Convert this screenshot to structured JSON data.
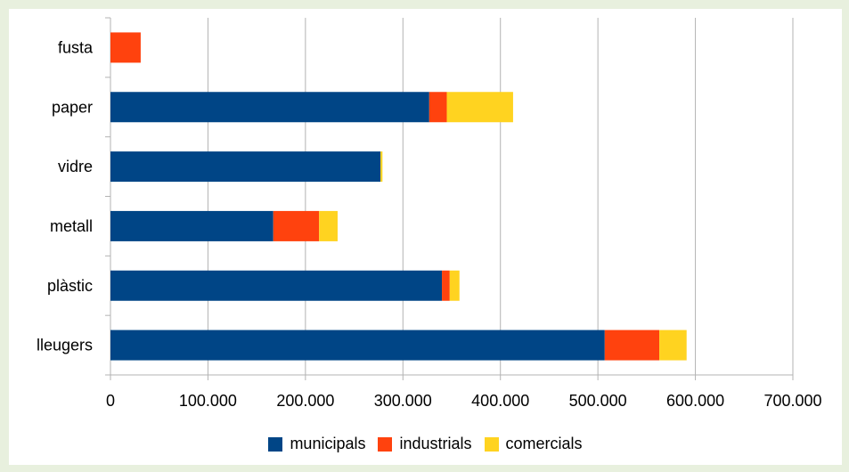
{
  "chart_data": {
    "type": "bar",
    "orientation": "horizontal",
    "stacked": true,
    "categories": [
      "fusta",
      "paper",
      "vidre",
      "metall",
      "plàstic",
      "lleugers"
    ],
    "series": [
      {
        "name": "municipals",
        "color": "#004586",
        "values": [
          0,
          327000,
          277000,
          167000,
          340000,
          507000
        ]
      },
      {
        "name": "industrials",
        "color": "#ff420e",
        "values": [
          31000,
          18000,
          0,
          47000,
          8000,
          56000
        ]
      },
      {
        "name": "comercials",
        "color": "#ffd320",
        "values": [
          0,
          68000,
          2000,
          19000,
          10000,
          28000
        ]
      }
    ],
    "x_ticks": [
      "0",
      "100.000",
      "200.000",
      "300.000",
      "400.000",
      "500.000",
      "600.000",
      "700.000"
    ],
    "xlim": [
      0,
      700000
    ],
    "grid": true,
    "legend_position": "bottom"
  }
}
